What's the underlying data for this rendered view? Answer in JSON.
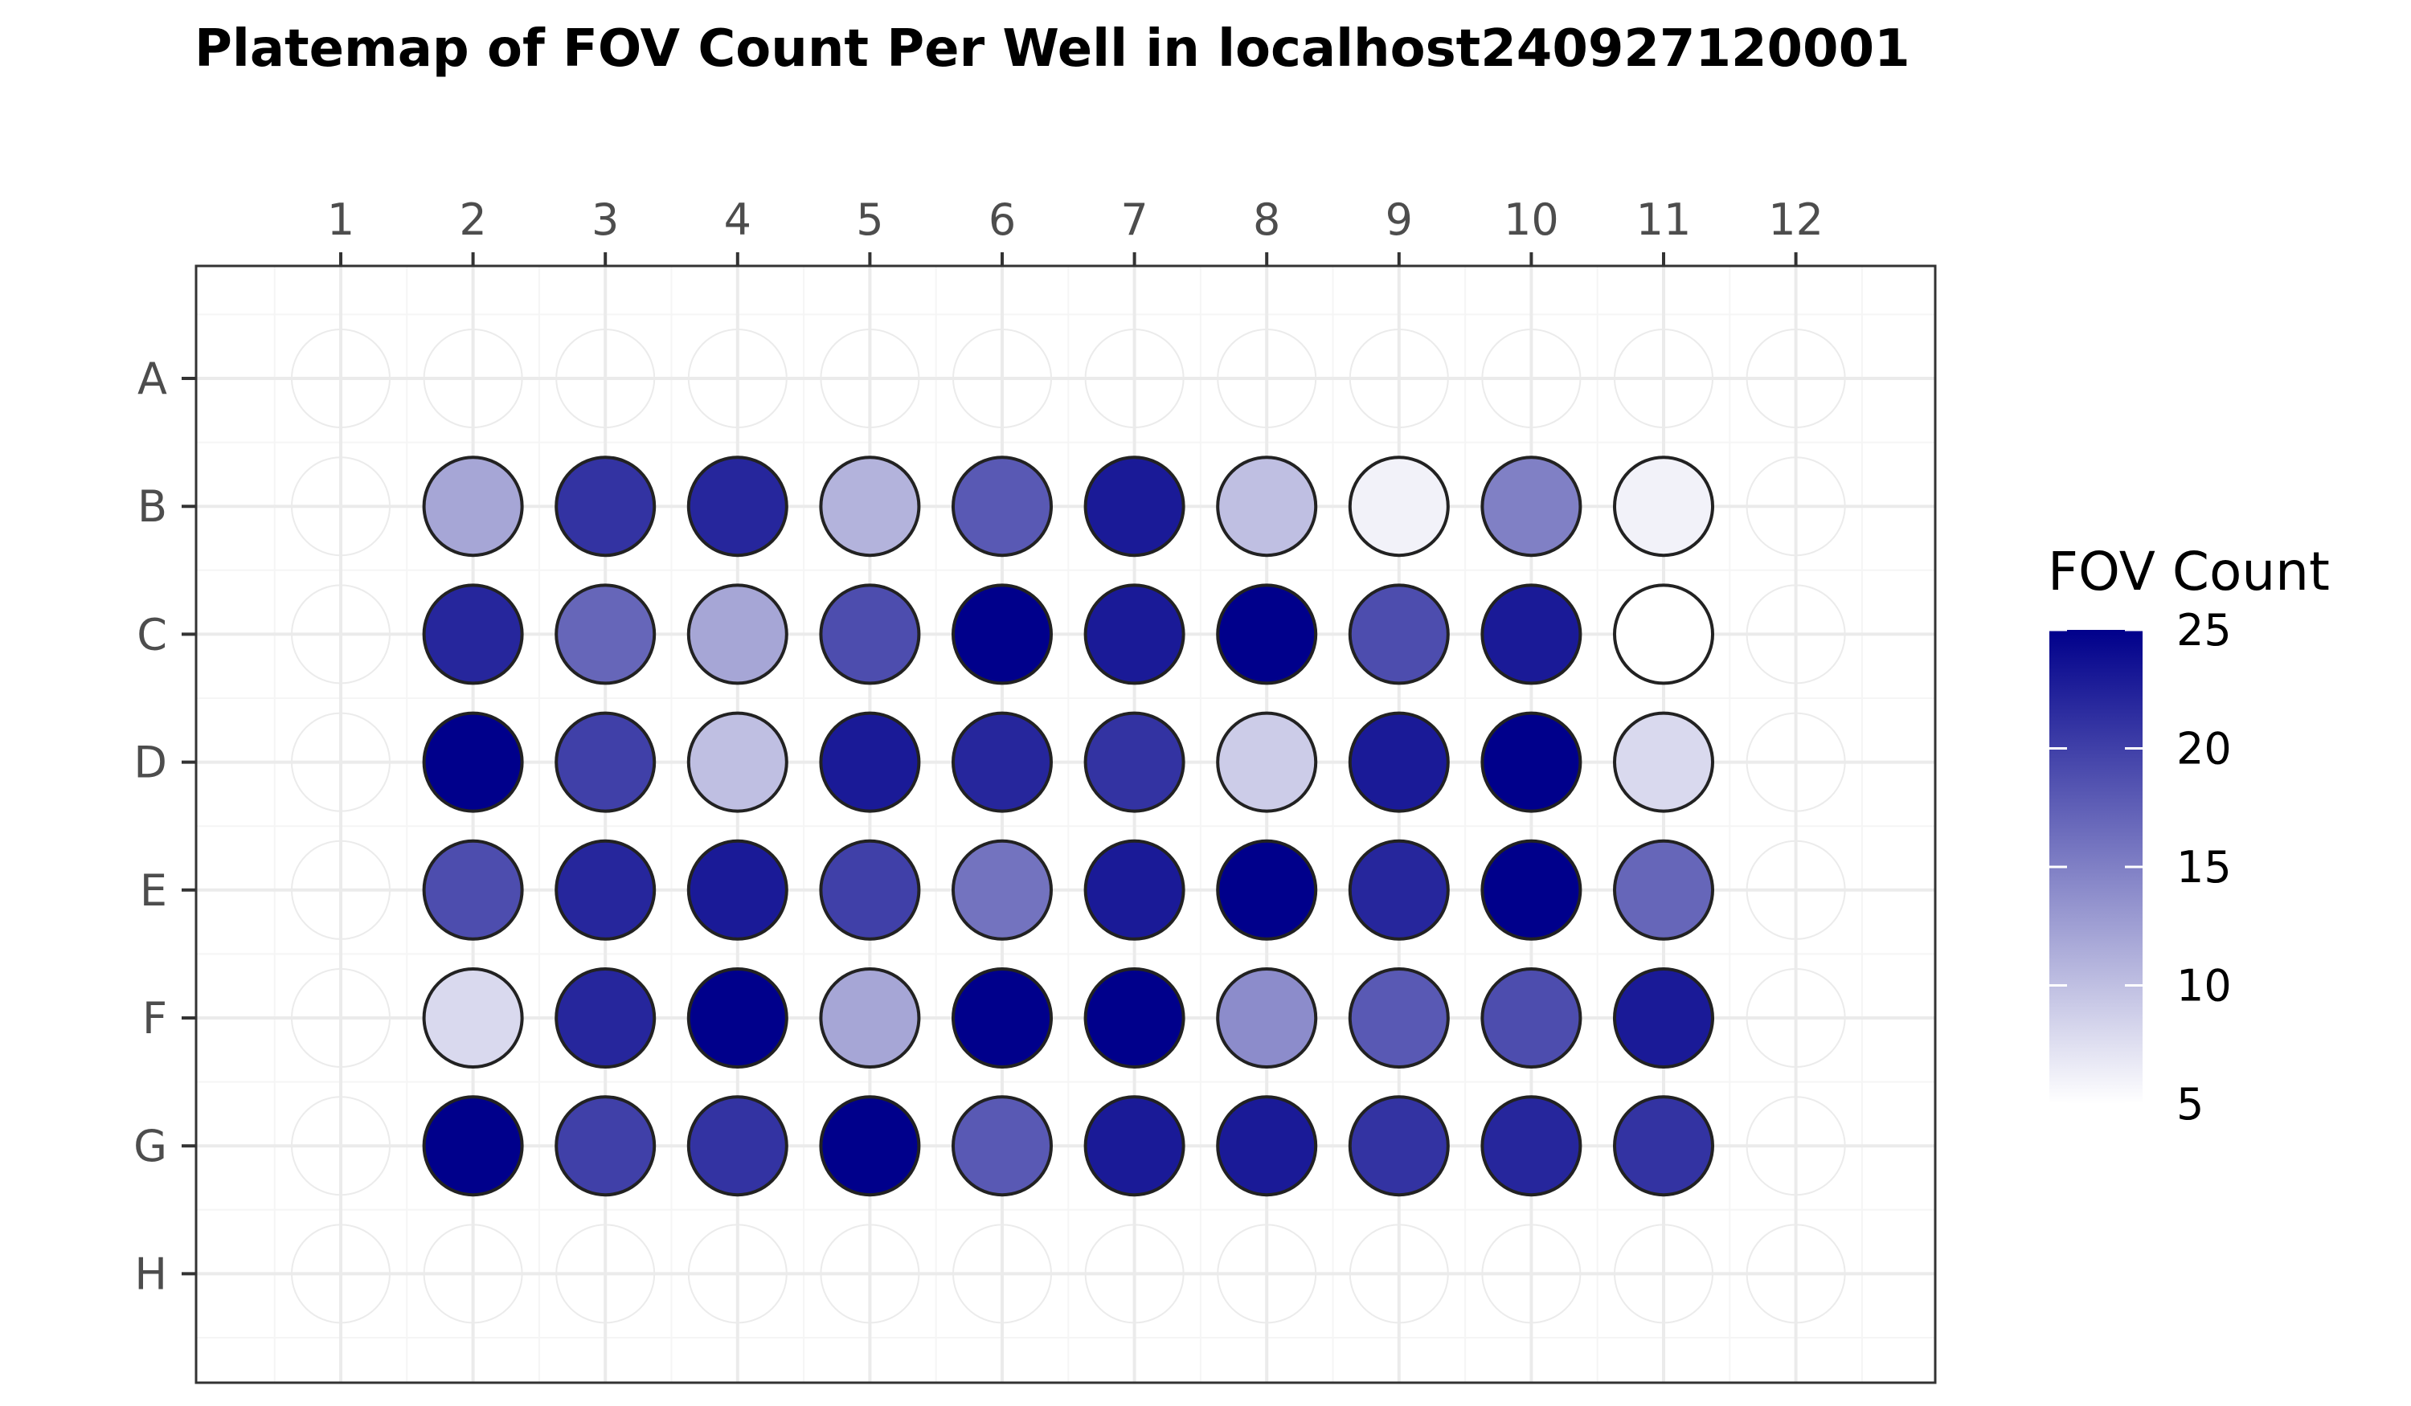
{
  "chart_data": {
    "type": "heatmap",
    "title": "Platemap of FOV Count Per Well in localhost240927120001",
    "columns": [
      "1",
      "2",
      "3",
      "4",
      "5",
      "6",
      "7",
      "8",
      "9",
      "10",
      "11",
      "12"
    ],
    "rows": [
      "A",
      "B",
      "C",
      "D",
      "E",
      "F",
      "G",
      "H"
    ],
    "values": [
      [
        null,
        null,
        null,
        null,
        null,
        null,
        null,
        null,
        null,
        null,
        null,
        null
      ],
      [
        null,
        12,
        21,
        22,
        11,
        18,
        23,
        10,
        6,
        15,
        6,
        null
      ],
      [
        null,
        22,
        17,
        12,
        19,
        25,
        23,
        25,
        19,
        23,
        5,
        null
      ],
      [
        null,
        25,
        20,
        10,
        23,
        22,
        21,
        9,
        23,
        25,
        8,
        null
      ],
      [
        null,
        19,
        22,
        23,
        20,
        16,
        23,
        25,
        22,
        25,
        17,
        null
      ],
      [
        null,
        8,
        22,
        25,
        12,
        25,
        25,
        14,
        18,
        19,
        23,
        null
      ],
      [
        null,
        25,
        20,
        21,
        25,
        18,
        23,
        23,
        21,
        22,
        21,
        null
      ],
      [
        null,
        null,
        null,
        null,
        null,
        null,
        null,
        null,
        null,
        null,
        null,
        null
      ]
    ],
    "legend": {
      "title": "FOV Count",
      "min": 5,
      "max": 25,
      "ticks": [
        "25",
        "20",
        "15",
        "10",
        "5"
      ],
      "tick_values": [
        25,
        20,
        15,
        10,
        5
      ],
      "position": "right",
      "low_color": "#ffffff",
      "high_color": "#00008b"
    },
    "axis_x_position": "top",
    "grid": true,
    "colors": {
      "panel_border": "#333333",
      "grid_major": "#ebebeb",
      "grid_minor": "#f5f5f5",
      "tick_label": "#4d4d4d",
      "well_stroke": "#222222",
      "empty_well_stroke": "#ebebeb"
    }
  }
}
